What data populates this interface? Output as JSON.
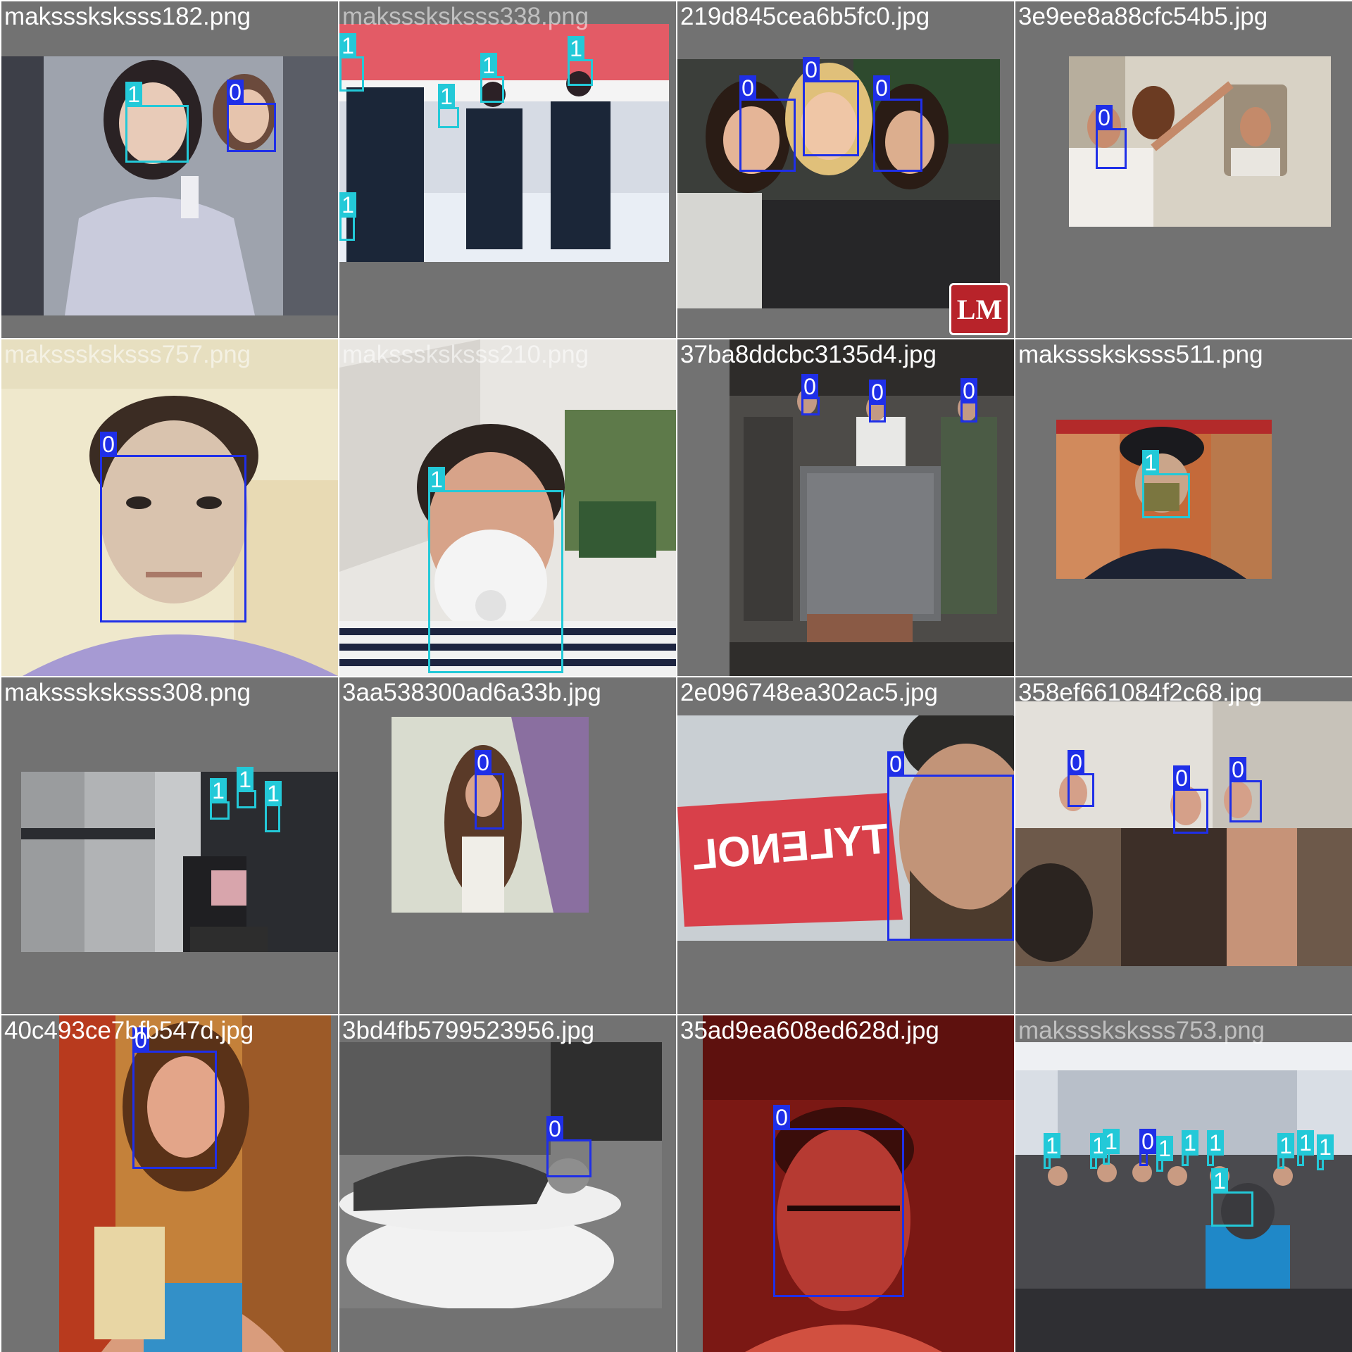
{
  "grid": {
    "title": "",
    "class_colors": {
      "0": "#1f2fe8",
      "1": "#23c9d8"
    }
  },
  "tiles": [
    {
      "filename": "maksssksksss182.png",
      "boxes": [
        {
          "label": "1"
        },
        {
          "label": "0"
        }
      ]
    },
    {
      "filename": "maksssksksss338.png",
      "boxes": [
        {
          "label": "1"
        },
        {
          "label": "1"
        },
        {
          "label": "1"
        },
        {
          "label": "1"
        },
        {
          "label": "1"
        }
      ]
    },
    {
      "filename": "219d845cea6b5fc0.jpg",
      "boxes": [
        {
          "label": "0"
        },
        {
          "label": "0"
        },
        {
          "label": "0"
        }
      ],
      "logo": "LM"
    },
    {
      "filename": "3e9ee8a88cfc54b5.jpg",
      "boxes": [
        {
          "label": "0"
        }
      ]
    },
    {
      "filename": "maksssksksss757.png",
      "boxes": [
        {
          "label": "0"
        }
      ]
    },
    {
      "filename": "maksssksksss210.png",
      "boxes": [
        {
          "label": "1"
        }
      ]
    },
    {
      "filename": "37ba8ddcbc3135d4.jpg",
      "boxes": [
        {
          "label": "0"
        },
        {
          "label": "0"
        },
        {
          "label": "0"
        }
      ]
    },
    {
      "filename": "maksssksksss511.png",
      "boxes": [
        {
          "label": "1"
        }
      ]
    },
    {
      "filename": "maksssksksss308.png",
      "boxes": [
        {
          "label": "1"
        },
        {
          "label": "1"
        },
        {
          "label": "1"
        }
      ]
    },
    {
      "filename": "3aa538300ad6a33b.jpg",
      "boxes": [
        {
          "label": "0"
        }
      ]
    },
    {
      "filename": "2e096748ea302ac5.jpg",
      "boxes": [
        {
          "label": "0"
        }
      ],
      "product_text": "TYLENOL"
    },
    {
      "filename": "358ef661084f2c68.jpg",
      "boxes": [
        {
          "label": "0"
        },
        {
          "label": "0"
        },
        {
          "label": "0"
        }
      ]
    },
    {
      "filename": "40c493ce7bfb547d.jpg",
      "boxes": [
        {
          "label": "0"
        }
      ]
    },
    {
      "filename": "3bd4fb5799523956.jpg",
      "boxes": [
        {
          "label": "0"
        }
      ]
    },
    {
      "filename": "35ad9ea608ed628d.jpg",
      "boxes": [
        {
          "label": "0"
        }
      ]
    },
    {
      "filename": "maksssksksss753.png",
      "boxes": [
        {
          "label": "1"
        },
        {
          "label": "1"
        },
        {
          "label": "1"
        },
        {
          "label": "0"
        },
        {
          "label": "1"
        },
        {
          "label": "1"
        },
        {
          "label": "1"
        },
        {
          "label": "1"
        },
        {
          "label": "1"
        },
        {
          "label": "1"
        },
        {
          "label": "1"
        }
      ]
    }
  ]
}
